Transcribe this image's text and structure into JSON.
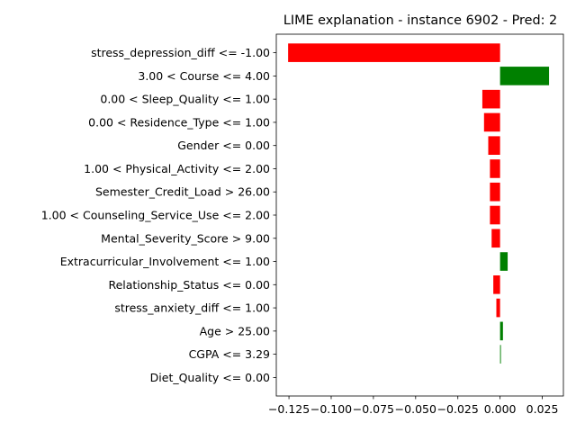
{
  "chart_data": {
    "type": "bar",
    "orientation": "horizontal",
    "title": "LIME explanation - instance 6902 - Pred: 2",
    "xlabel": "",
    "ylabel": "",
    "xlim": [
      -0.1325,
      0.0375
    ],
    "xticks": [
      -0.125,
      -0.1,
      -0.075,
      -0.05,
      -0.025,
      0.0,
      0.025
    ],
    "xtick_labels": [
      "−0.125",
      "−0.100",
      "−0.075",
      "−0.050",
      "−0.025",
      "0.000",
      "0.025"
    ],
    "grid": false,
    "legend": false,
    "colors": {
      "positive": "#008000",
      "negative": "#ff0000"
    },
    "categories": [
      "stress_depression_diff <= -1.00",
      "3.00 < Course <= 4.00",
      "0.00 < Sleep_Quality <= 1.00",
      "0.00 < Residence_Type <= 1.00",
      "Gender <= 0.00",
      "1.00 < Physical_Activity <= 2.00",
      "Semester_Credit_Load > 26.00",
      "1.00 < Counseling_Service_Use <= 2.00",
      "Mental_Severity_Score > 9.00",
      "Extracurricular_Involvement <= 1.00",
      "Relationship_Status <= 0.00",
      "stress_anxiety_diff <= 1.00",
      "Age > 25.00",
      "CGPA <= 3.29",
      "Diet_Quality <= 0.00"
    ],
    "values": [
      -0.1255,
      0.029,
      -0.0105,
      -0.0095,
      -0.007,
      -0.006,
      -0.006,
      -0.006,
      -0.005,
      0.0045,
      -0.004,
      -0.0022,
      0.0017,
      0.0005,
      0.0
    ]
  }
}
